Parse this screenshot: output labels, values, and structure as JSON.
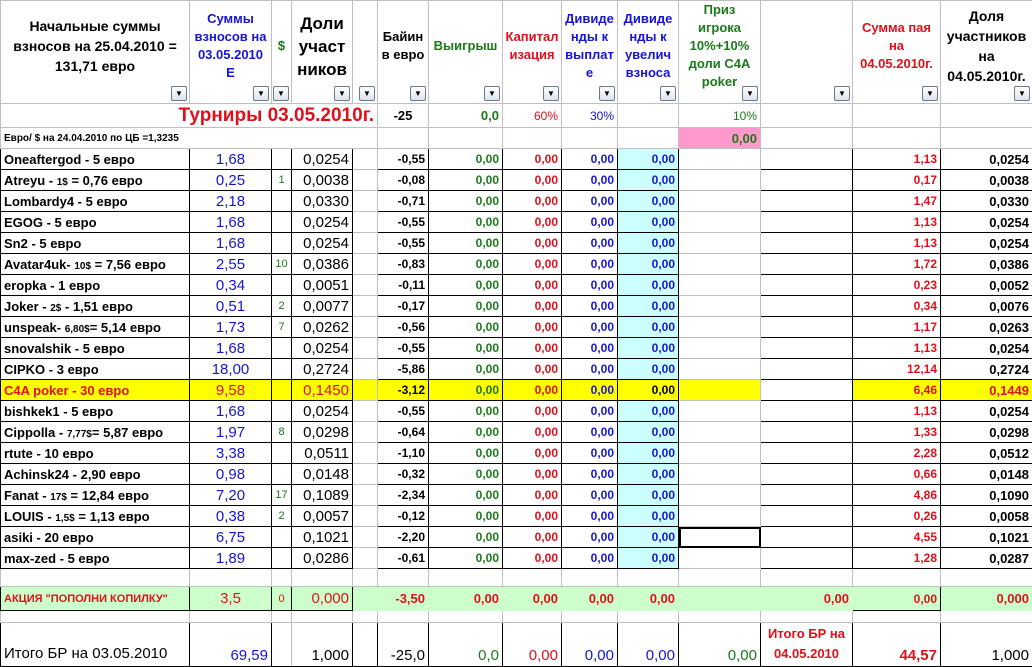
{
  "headers": [
    {
      "label": "Начальные суммы взносов на 25.04.2010 = 131,71 евро",
      "color": "black"
    },
    {
      "label": "Суммы взносов на 03.05.2010 Е",
      "color": "blue"
    },
    {
      "label": "$",
      "color": "green"
    },
    {
      "label": "Доли участ ников",
      "color": "black"
    },
    {
      "label": "",
      "color": "black"
    },
    {
      "label": "Байин в евро",
      "color": "black"
    },
    {
      "label": "Выигрыш",
      "color": "green"
    },
    {
      "label": "Капитал изация",
      "color": "red"
    },
    {
      "label": "Дивиде нды к выплат е",
      "color": "blue"
    },
    {
      "label": "Дивиде нды к увелич взноса",
      "color": "blue"
    },
    {
      "label": "Приз игрока 10%+10% доли C4A poker",
      "color": "green"
    },
    {
      "label": "",
      "color": "black"
    },
    {
      "label": "Сумма пая на 04.05.2010г.",
      "color": "red"
    },
    {
      "label": "Доля участников на 04.05.2010г.",
      "color": "black"
    }
  ],
  "filter_icon": "dropdown-arrow-icon",
  "tournament_title": "Турниры 03.05.2010г.",
  "summary_row": {
    "buyin": "-25",
    "win": "0,0",
    "cap": "60%",
    "div": "30%",
    "prize": "10%"
  },
  "rate_note": "Евро/ $ на 24.04.2010 по ЦБ =1,3235",
  "prize_total": "0,00",
  "rows": [
    {
      "n": [
        "Oneaftergod - 5 евро",
        "",
        ""
      ],
      "sum": "1,68",
      "usd": "",
      "share": "0,0254",
      "buyin": "-0,55",
      "pay": "1,13",
      "share2": "0,0254"
    },
    {
      "n": [
        "Atreyu - ",
        "1$",
        " = 0,76 евро"
      ],
      "sum": "0,25",
      "usd": "1",
      "share": "0,0038",
      "buyin": "-0,08",
      "pay": "0,17",
      "share2": "0,0038"
    },
    {
      "n": [
        "Lombardy4 - 5 евро",
        "",
        ""
      ],
      "sum": "2,18",
      "usd": "",
      "share": "0,0330",
      "buyin": "-0,71",
      "pay": "1,47",
      "share2": "0,0330"
    },
    {
      "n": [
        "EGOG - 5 евро",
        "",
        ""
      ],
      "sum": "1,68",
      "usd": "",
      "share": "0,0254",
      "buyin": "-0,55",
      "pay": "1,13",
      "share2": "0,0254"
    },
    {
      "n": [
        "Sn2 - 5 евро",
        "",
        ""
      ],
      "sum": "1,68",
      "usd": "",
      "share": "0,0254",
      "buyin": "-0,55",
      "pay": "1,13",
      "share2": "0,0254"
    },
    {
      "n": [
        "Avatar4uk- ",
        "10$",
        " = 7,56 евро"
      ],
      "sum": "2,55",
      "usd": "10",
      "share": "0,0386",
      "buyin": "-0,83",
      "pay": "1,72",
      "share2": "0,0386"
    },
    {
      "n": [
        "eropka - 1 евро",
        "",
        ""
      ],
      "sum": "0,34",
      "usd": "",
      "share": "0,0051",
      "buyin": "-0,11",
      "pay": "0,23",
      "share2": "0,0052"
    },
    {
      "n": [
        "Joker - ",
        "2$",
        " - 1,51 евро"
      ],
      "sum": "0,51",
      "usd": "2",
      "share": "0,0077",
      "buyin": "-0,17",
      "pay": "0,34",
      "share2": "0,0076"
    },
    {
      "n": [
        "unspeak- ",
        "6,80$",
        "= 5,14 евро"
      ],
      "sum": "1,73",
      "usd": "7",
      "share": "0,0262",
      "buyin": "-0,56",
      "pay": "1,17",
      "share2": "0,0263"
    },
    {
      "n": [
        "snovalshik - 5 евро",
        "",
        ""
      ],
      "sum": "1,68",
      "usd": "",
      "share": "0,0254",
      "buyin": "-0,55",
      "pay": "1,13",
      "share2": "0,0254"
    },
    {
      "n": [
        "CIPKO - 3 евро",
        "",
        ""
      ],
      "sum": "18,00",
      "usd": "",
      "share": "0,2724",
      "buyin": "-5,86",
      "pay": "12,14",
      "share2": "0,2724"
    },
    {
      "n": [
        "C4A poker - 30 евро",
        "",
        ""
      ],
      "sum": "9,58",
      "usd": "",
      "share": "0,1450",
      "buyin": "-3,12",
      "pay": "6,46",
      "share2": "0,1449",
      "highlight": true
    },
    {
      "n": [
        "bishkek1 - 5 евро",
        "",
        ""
      ],
      "sum": "1,68",
      "usd": "",
      "share": "0,0254",
      "buyin": "-0,55",
      "pay": "1,13",
      "share2": "0,0254"
    },
    {
      "n": [
        "Cippolla - ",
        "7,77$",
        "= 5,87 евро"
      ],
      "sum": "1,97",
      "usd": "8",
      "share": "0,0298",
      "buyin": "-0,64",
      "pay": "1,33",
      "share2": "0,0298"
    },
    {
      "n": [
        "rtute - 10 евро",
        "",
        ""
      ],
      "sum": "3,38",
      "usd": "",
      "share": "0,0511",
      "buyin": "-1,10",
      "pay": "2,28",
      "share2": "0,0512"
    },
    {
      "n": [
        "Achinsk24 - 2,90 евро",
        "",
        ""
      ],
      "sum": "0,98",
      "usd": "",
      "share": "0,0148",
      "buyin": "-0,32",
      "pay": "0,66",
      "share2": "0,0148"
    },
    {
      "n": [
        "Fanat - ",
        "17$",
        " = 12,84 евро"
      ],
      "sum": "7,20",
      "usd": "17",
      "share": "0,1089",
      "buyin": "-2,34",
      "pay": "4,86",
      "share2": "0,1090"
    },
    {
      "n": [
        "LOUIS - ",
        "1,5$",
        " = 1,13 евро"
      ],
      "sum": "0,38",
      "usd": "2",
      "share": "0,0057",
      "buyin": "-0,12",
      "pay": "0,26",
      "share2": "0,0058"
    },
    {
      "n": [
        "asiki - 20 евро",
        "",
        ""
      ],
      "sum": "6,75",
      "usd": "",
      "share": "0,1021",
      "buyin": "-2,20",
      "pay": "4,55",
      "share2": "0,1021",
      "selected": true
    },
    {
      "n": [
        "max-zed - 5 евро",
        "",
        ""
      ],
      "sum": "1,89",
      "usd": "",
      "share": "0,0286",
      "buyin": "-0,61",
      "pay": "1,28",
      "share2": "0,0287"
    }
  ],
  "zero": "0,00",
  "promo": {
    "label": "АКЦИЯ \"ПОПОЛНИ КОПИЛКУ\"",
    "sum": "3,5",
    "usd": "0",
    "share": "0,000",
    "buyin": "-3,50",
    "win": "0,00",
    "cap": "0,00",
    "div": "0,00",
    "divinc": "0,00",
    "blank": "0,00",
    "pay": "0,00",
    "share2": "0,000"
  },
  "totals": {
    "label": "Итого БР на 03.05.2010",
    "sum": "69,59",
    "share": "1,000",
    "buyin": "-25,0",
    "win": "0,0",
    "cap": "0,00",
    "div": "0,00",
    "divinc": "0,00",
    "prize": "0,00",
    "label2": "Итого БР на 04.05.2010",
    "pay": "44,57",
    "share2": "1,000"
  },
  "colors": {
    "highlight": "#ffff00",
    "light_blue": "#ccffff",
    "promo_green": "#ccffcc",
    "pink": "#ff99cc"
  }
}
